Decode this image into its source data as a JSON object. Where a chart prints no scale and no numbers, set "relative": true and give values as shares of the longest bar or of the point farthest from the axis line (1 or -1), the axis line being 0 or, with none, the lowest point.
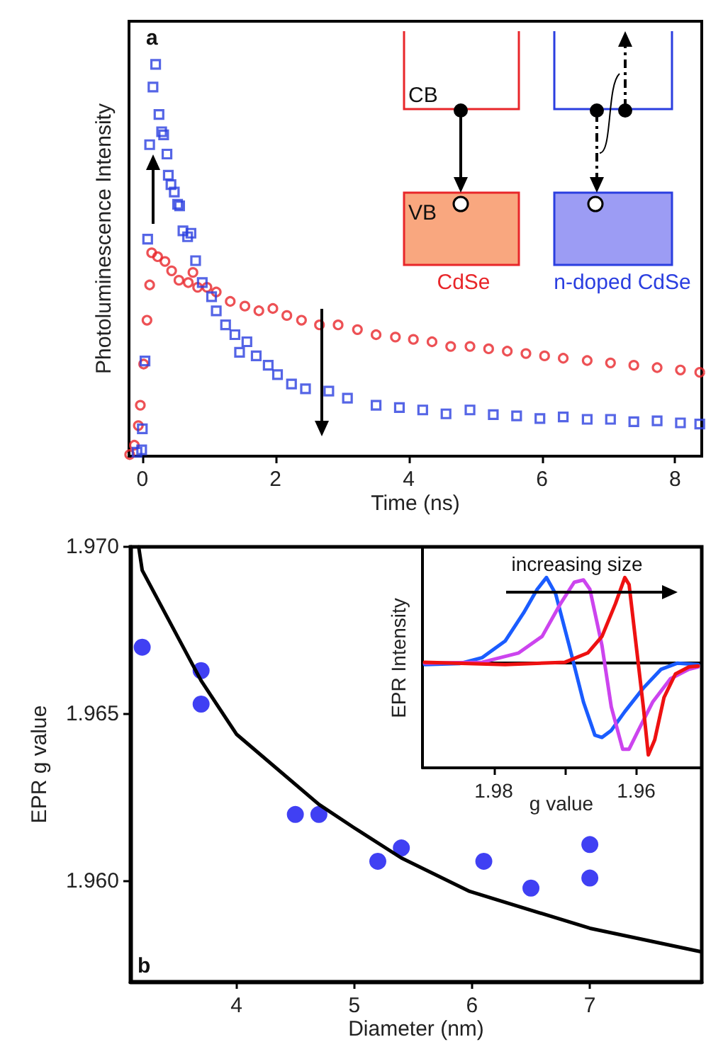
{
  "chart_data": [
    {
      "type": "scatter",
      "xlabel": "Time (ns)",
      "ylabel": "Photoluminescence Intensity",
      "relative": true,
      "annotations": [
        "a"
      ],
      "xlim": [
        -0.2,
        8.4
      ],
      "xticks": [
        0,
        2,
        4,
        6,
        8
      ],
      "series": [
        {
          "color": "#e8262a",
          "marker": "circle",
          "x": [
            -0.19,
            -0.12,
            -0.06,
            -0.03,
            0.02,
            0.07,
            0.11,
            0.14,
            0.23,
            0.34,
            0.44,
            0.55,
            0.69,
            0.76,
            0.83,
            0.97,
            1.11,
            1.32,
            1.54,
            1.75,
            1.96,
            2.17,
            2.39,
            2.66,
            2.94,
            3.23,
            3.51,
            3.8,
            4.07,
            4.35,
            4.63,
            4.92,
            5.2,
            5.48,
            5.76,
            6.04,
            6.32,
            6.68,
            7.03,
            7.38,
            7.73,
            8.08,
            8.37
          ],
          "values": [
            0.004,
            0.028,
            0.078,
            0.13,
            0.235,
            0.347,
            0.437,
            0.519,
            0.509,
            0.497,
            0.473,
            0.449,
            0.443,
            0.469,
            0.431,
            0.431,
            0.419,
            0.395,
            0.383,
            0.371,
            0.377,
            0.359,
            0.347,
            0.335,
            0.335,
            0.323,
            0.31,
            0.304,
            0.298,
            0.292,
            0.28,
            0.28,
            0.274,
            0.268,
            0.262,
            0.256,
            0.25,
            0.244,
            0.238,
            0.232,
            0.226,
            0.22,
            0.214
          ]
        },
        {
          "color": "#2a3ee0",
          "marker": "square",
          "x": [
            -0.08,
            -0.01,
            0,
            0.04,
            0.08,
            0.11,
            0.16,
            0.2,
            0.25,
            0.29,
            0.32,
            0.37,
            0.39,
            0.43,
            0.48,
            0.53,
            0.56,
            0.61,
            0.68,
            0.73,
            0.8,
            0.9,
            1.04,
            1.11,
            1.25,
            1.39,
            1.46,
            1.57,
            1.71,
            1.89,
            2.03,
            2.24,
            2.45,
            2.8,
            3.08,
            3.51,
            3.86,
            4.21,
            4.56,
            4.92,
            5.27,
            5.62,
            5.97,
            6.32,
            6.68,
            7.03,
            7.38,
            7.73,
            8.08,
            8.37
          ],
          "values": [
            0.01,
            0.016,
            0.07,
            0.243,
            0.554,
            0.795,
            0.942,
            1,
            0.872,
            0.828,
            0.82,
            0.771,
            0.717,
            0.693,
            0.674,
            0.643,
            0.639,
            0.575,
            0.56,
            0.569,
            0.499,
            0.443,
            0.407,
            0.371,
            0.335,
            0.31,
            0.265,
            0.292,
            0.256,
            0.232,
            0.208,
            0.184,
            0.172,
            0.166,
            0.148,
            0.13,
            0.124,
            0.118,
            0.108,
            0.118,
            0.106,
            0.103,
            0.096,
            0.1,
            0.094,
            0.094,
            0.088,
            0.09,
            0.085,
            0.082
          ]
        }
      ]
    },
    {
      "type": "other",
      "annotations": [
        "CB",
        "VB",
        "CdSe",
        "n-doped CdSe"
      ],
      "colors": [
        "#e8262a",
        "#f9a77f",
        "#2a3ee0",
        "#9c9cf4"
      ]
    },
    {
      "type": "scatter",
      "xlabel": "Diameter (nm)",
      "ylabel": "EPR g value",
      "annotations": [
        "b"
      ],
      "xlim": [
        3.1,
        7.95
      ],
      "xticks": [
        4,
        5,
        6,
        7
      ],
      "ylim": [
        1.957,
        1.97
      ],
      "yticks": [
        {
          "value": 1.96,
          "label": "1.960"
        },
        {
          "value": 1.965,
          "label": "1.965"
        },
        {
          "value": 1.97,
          "label": "1.970"
        }
      ],
      "series": [
        {
          "color": "#1010f0",
          "marker": "circle",
          "x": [
            3.2,
            3.7,
            3.7,
            4.5,
            4.7,
            5.2,
            5.4,
            6.1,
            6.5,
            7.0,
            7.0
          ],
          "values": [
            1.967,
            1.9663,
            1.9653,
            1.962,
            1.962,
            1.9606,
            1.961,
            1.9606,
            1.9598,
            1.9611,
            1.9601
          ]
        },
        {
          "type": "line",
          "color": "#000000",
          "marker": "none",
          "x": [
            3.17,
            3.2,
            3.7,
            4.0,
            4.7,
            5.0,
            5.4,
            5.98,
            7.0,
            7.94
          ],
          "values": [
            1.97,
            1.9693,
            1.966,
            1.9644,
            1.9623,
            1.9616,
            1.9607,
            1.9597,
            1.9586,
            1.9579
          ]
        }
      ]
    },
    {
      "type": "line",
      "xlabel": "g value",
      "ylabel": "EPR Intensity",
      "relative": true,
      "annotations": [
        "increasing size"
      ],
      "xlim": [
        1.99,
        1.951
      ],
      "xticks": [
        1.98,
        {
          "value": 1.97,
          "label": null
        },
        1.96
      ],
      "series": [
        {
          "color": "#1a5cff",
          "x": [
            1.9897,
            1.9848,
            1.9816,
            1.9784,
            1.9758,
            1.9739,
            1.9726,
            1.9713,
            1.9694,
            1.9674,
            1.9658,
            1.9648,
            1.9635,
            1.9616,
            1.959,
            1.9565,
            1.9542,
            1.9513
          ],
          "values": [
            -0.025,
            -0.015,
            0.05,
            0.228,
            0.533,
            0.787,
            0.914,
            0.736,
            0.178,
            -0.431,
            -0.787,
            -0.812,
            -0.736,
            -0.533,
            -0.279,
            -0.076,
            -0.01,
            -0.025
          ]
        },
        {
          "color": "#cc44ee",
          "x": [
            1.9897,
            1.9816,
            1.9765,
            1.9732,
            1.9706,
            1.9687,
            1.9674,
            1.9665,
            1.9648,
            1.9635,
            1.9619,
            1.961,
            1.9597,
            1.9577,
            1.9552,
            1.9526,
            1.9513
          ],
          "values": [
            -0.01,
            0,
            0.1,
            0.279,
            0.635,
            0.863,
            0.888,
            0.787,
            0.178,
            -0.482,
            -0.939,
            -0.939,
            -0.736,
            -0.431,
            -0.178,
            -0.076,
            -0.051
          ]
        },
        {
          "color": "#ee1111",
          "x": [
            1.9897,
            1.9784,
            1.97,
            1.9668,
            1.9648,
            1.9629,
            1.9616,
            1.961,
            1.96,
            1.959,
            1.9583,
            1.9574,
            1.9561,
            1.9545,
            1.9526,
            1.9513
          ],
          "values": [
            0,
            -0.025,
            0,
            0.1,
            0.279,
            0.635,
            0.914,
            0.838,
            0.178,
            -0.482,
            -1,
            -0.838,
            -0.381,
            -0.127,
            -0.051,
            -0.041
          ]
        }
      ]
    }
  ]
}
